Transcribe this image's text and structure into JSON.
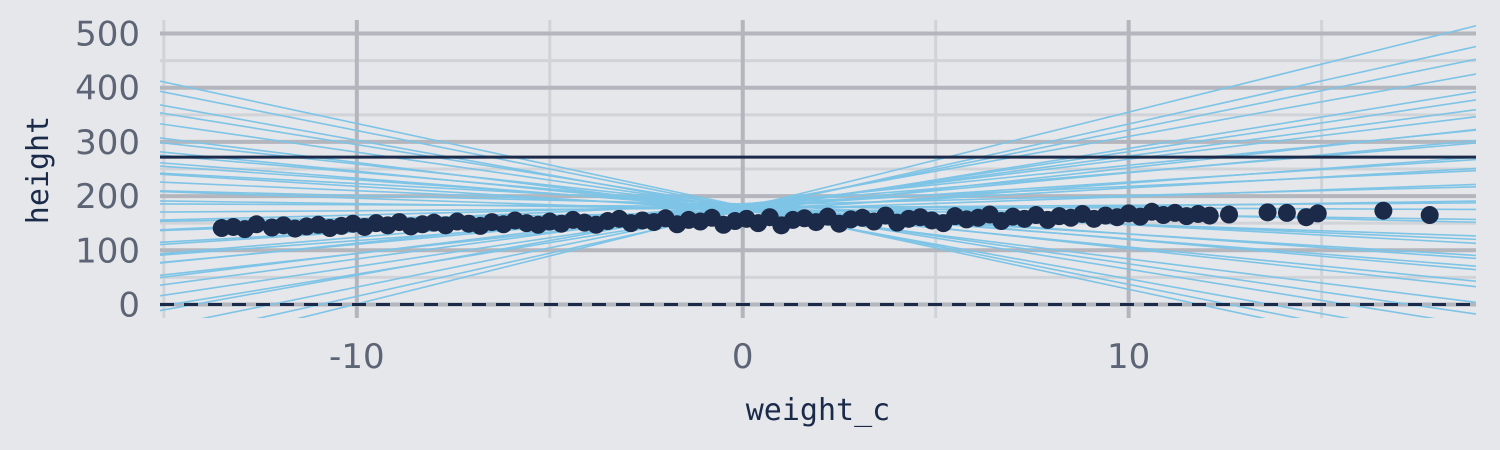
{
  "chart_data": {
    "type": "scatter",
    "xlabel": "weight_c",
    "ylabel": "height",
    "xlim": [
      -15.1,
      19
    ],
    "ylim": [
      -25,
      525
    ],
    "x_ticks": [
      -10,
      0,
      10
    ],
    "x_tick_labels": [
      "-10",
      "0",
      "10"
    ],
    "y_ticks": [
      0,
      100,
      200,
      300,
      400,
      500
    ],
    "y_tick_labels": [
      "0",
      "100",
      "200",
      "300",
      "400",
      "500"
    ],
    "grid": true,
    "legend": "none",
    "reference_lines": [
      {
        "y": 272,
        "style": "solid"
      },
      {
        "y": 0,
        "style": "dashed"
      }
    ],
    "regression_lines": [
      {
        "intercept": 178,
        "slope": 17.7
      },
      {
        "intercept": 182,
        "slope": 12.8
      },
      {
        "intercept": 172,
        "slope": 11.6
      },
      {
        "intercept": 176,
        "slope": 10.6
      },
      {
        "intercept": 179,
        "slope": 9.5
      },
      {
        "intercept": 181,
        "slope": 8.7
      },
      {
        "intercept": 173,
        "slope": 7.9
      },
      {
        "intercept": 185,
        "slope": 7.2
      },
      {
        "intercept": 177,
        "slope": 6.6
      },
      {
        "intercept": 184,
        "slope": 6.0
      },
      {
        "intercept": 171,
        "slope": 5.3
      },
      {
        "intercept": 180,
        "slope": 4.6
      },
      {
        "intercept": 175,
        "slope": 4.0
      },
      {
        "intercept": 186,
        "slope": 3.2
      },
      {
        "intercept": 174,
        "slope": 2.5
      },
      {
        "intercept": 183,
        "slope": 1.8
      },
      {
        "intercept": 170,
        "slope": 1.1
      },
      {
        "intercept": 178,
        "slope": 0.5
      },
      {
        "intercept": 181,
        "slope": -0.3
      },
      {
        "intercept": 176,
        "slope": -1.0
      },
      {
        "intercept": 184,
        "slope": -1.7
      },
      {
        "intercept": 172,
        "slope": -2.4
      },
      {
        "intercept": 179,
        "slope": -3.1
      },
      {
        "intercept": 185,
        "slope": -3.8
      },
      {
        "intercept": 174,
        "slope": -4.4
      },
      {
        "intercept": 180,
        "slope": -5.0
      },
      {
        "intercept": 177,
        "slope": -5.6
      },
      {
        "intercept": 182,
        "slope": -6.2
      },
      {
        "intercept": 176,
        "slope": -7.0
      },
      {
        "intercept": 181,
        "slope": -7.8
      },
      {
        "intercept": 173,
        "slope": -8.9
      },
      {
        "intercept": 178,
        "slope": -10.3
      },
      {
        "intercept": 180,
        "slope": -11.5
      },
      {
        "intercept": 175,
        "slope": -12.8
      },
      {
        "intercept": 179,
        "slope": -14.2
      },
      {
        "intercept": 181,
        "slope": -15.3
      },
      {
        "intercept": 177,
        "slope": 14.5
      },
      {
        "intercept": 174,
        "slope": 15.9
      }
    ],
    "points": [
      [
        -13.5,
        141
      ],
      [
        -13.2,
        143
      ],
      [
        -12.9,
        139
      ],
      [
        -12.6,
        148
      ],
      [
        -12.2,
        142
      ],
      [
        -11.9,
        146
      ],
      [
        -11.6,
        140
      ],
      [
        -11.3,
        144
      ],
      [
        -11.0,
        147
      ],
      [
        -10.7,
        141
      ],
      [
        -10.4,
        145
      ],
      [
        -10.1,
        149
      ],
      [
        -9.8,
        143
      ],
      [
        -9.5,
        150
      ],
      [
        -9.2,
        146
      ],
      [
        -8.9,
        152
      ],
      [
        -8.6,
        144
      ],
      [
        -8.3,
        148
      ],
      [
        -8.0,
        151
      ],
      [
        -7.7,
        146
      ],
      [
        -7.4,
        153
      ],
      [
        -7.1,
        149
      ],
      [
        -6.8,
        145
      ],
      [
        -6.5,
        152
      ],
      [
        -6.2,
        148
      ],
      [
        -5.9,
        155
      ],
      [
        -5.6,
        150
      ],
      [
        -5.3,
        147
      ],
      [
        -5.0,
        153
      ],
      [
        -4.7,
        149
      ],
      [
        -4.4,
        156
      ],
      [
        -4.1,
        151
      ],
      [
        -3.8,
        147
      ],
      [
        -3.5,
        154
      ],
      [
        -3.2,
        158
      ],
      [
        -2.9,
        150
      ],
      [
        -2.6,
        155
      ],
      [
        -2.3,
        152
      ],
      [
        -2.0,
        159
      ],
      [
        -1.7,
        148
      ],
      [
        -1.4,
        156
      ],
      [
        -1.1,
        153
      ],
      [
        -0.8,
        160
      ],
      [
        -0.5,
        147
      ],
      [
        -0.2,
        154
      ],
      [
        0.1,
        158
      ],
      [
        0.4,
        150
      ],
      [
        0.7,
        161
      ],
      [
        1.0,
        146
      ],
      [
        1.3,
        156
      ],
      [
        1.6,
        159
      ],
      [
        1.9,
        152
      ],
      [
        2.2,
        162
      ],
      [
        2.5,
        149
      ],
      [
        2.8,
        157
      ],
      [
        3.1,
        160
      ],
      [
        3.4,
        153
      ],
      [
        3.7,
        164
      ],
      [
        4.0,
        151
      ],
      [
        4.3,
        158
      ],
      [
        4.6,
        161
      ],
      [
        4.9,
        155
      ],
      [
        5.2,
        150
      ],
      [
        5.5,
        163
      ],
      [
        5.8,
        157
      ],
      [
        6.1,
        160
      ],
      [
        6.4,
        166
      ],
      [
        6.7,
        154
      ],
      [
        7.0,
        162
      ],
      [
        7.3,
        158
      ],
      [
        7.6,
        165
      ],
      [
        7.9,
        156
      ],
      [
        8.2,
        163
      ],
      [
        8.5,
        160
      ],
      [
        8.8,
        167
      ],
      [
        9.1,
        158
      ],
      [
        9.4,
        164
      ],
      [
        9.7,
        161
      ],
      [
        10.0,
        168
      ],
      [
        10.3,
        162
      ],
      [
        10.6,
        171
      ],
      [
        10.9,
        165
      ],
      [
        11.2,
        169
      ],
      [
        11.5,
        163
      ],
      [
        11.8,
        167
      ],
      [
        12.1,
        164
      ],
      [
        12.6,
        166
      ],
      [
        13.6,
        170
      ],
      [
        14.1,
        169
      ],
      [
        14.6,
        161
      ],
      [
        14.9,
        168
      ],
      [
        16.6,
        173
      ],
      [
        17.8,
        165
      ]
    ]
  }
}
